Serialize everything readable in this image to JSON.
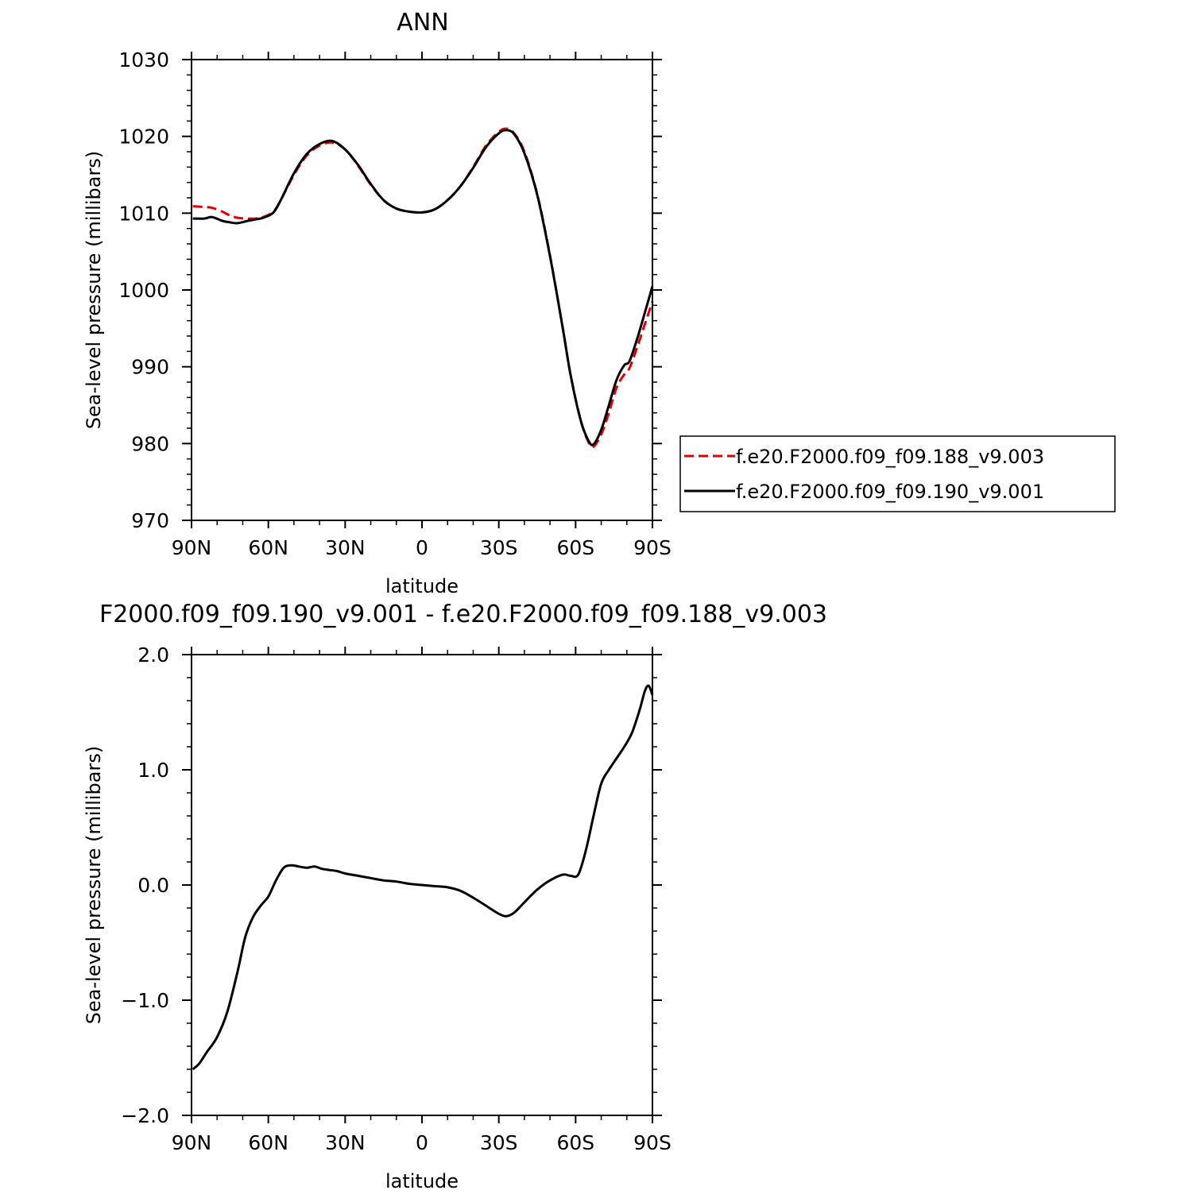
{
  "chart_data": [
    {
      "type": "line",
      "title": "ANN",
      "xlabel": "latitude",
      "ylabel": "Sea-level pressure (millibars)",
      "xlim": [
        90,
        -90
      ],
      "ylim": [
        970,
        1030
      ],
      "x_ticks": [
        {
          "value": 90,
          "label": "90N"
        },
        {
          "value": 60,
          "label": "60N"
        },
        {
          "value": 30,
          "label": "30N"
        },
        {
          "value": 0,
          "label": "0"
        },
        {
          "value": -30,
          "label": "30S"
        },
        {
          "value": -60,
          "label": "60S"
        },
        {
          "value": -90,
          "label": "90S"
        }
      ],
      "y_ticks": [
        {
          "value": 1030,
          "label": "1030"
        },
        {
          "value": 1020,
          "label": "1020"
        },
        {
          "value": 1010,
          "label": "1010"
        },
        {
          "value": 1000,
          "label": "1000"
        },
        {
          "value": 990,
          "label": "990"
        },
        {
          "value": 980,
          "label": "980"
        },
        {
          "value": 970,
          "label": "970"
        }
      ],
      "legend_position": "right",
      "series": [
        {
          "name": "f.e20.F2000.f09_f09.188_v9.003",
          "color": "#e00000",
          "dash": "dashed",
          "x": [
            89.5,
            85,
            82,
            78,
            75,
            72,
            68,
            65,
            62,
            58,
            55,
            50,
            45,
            40,
            35,
            30,
            25,
            20,
            15,
            10,
            5,
            0,
            -5,
            -10,
            -15,
            -20,
            -25,
            -30,
            -33,
            -36,
            -40,
            -45,
            -50,
            -55,
            -58,
            -62,
            -65,
            -67,
            -70,
            -73,
            -76,
            -79,
            -81,
            -84,
            -87,
            -90
          ],
          "y": [
            1010.9,
            1010.8,
            1010.7,
            1010.2,
            1009.7,
            1009.4,
            1009.3,
            1009.3,
            1009.5,
            1010.2,
            1011.8,
            1015,
            1017.5,
            1018.8,
            1019.2,
            1018.3,
            1016.2,
            1013.7,
            1011.7,
            1010.6,
            1010.2,
            1010.1,
            1010.5,
            1011.7,
            1013.5,
            1016.0,
            1018.8,
            1020.6,
            1021.0,
            1020.4,
            1018,
            1012.5,
            1004.5,
            995,
            989,
            983,
            980.2,
            979.6,
            981.2,
            984,
            987.3,
            989,
            989.8,
            992.5,
            995.5,
            998.5
          ]
        },
        {
          "name": "f.e20.F2000.f09_f09.190_v9.001",
          "color": "#000000",
          "dash": "solid",
          "x": [
            89.5,
            85,
            82,
            78,
            75,
            72,
            68,
            65,
            62,
            58,
            55,
            50,
            45,
            40,
            35,
            30,
            25,
            20,
            15,
            10,
            5,
            0,
            -5,
            -10,
            -15,
            -20,
            -25,
            -30,
            -33,
            -36,
            -40,
            -45,
            -50,
            -55,
            -58,
            -62,
            -65,
            -67,
            -70,
            -73,
            -76,
            -79,
            -81,
            -84,
            -87,
            -90
          ],
          "y": [
            1009.3,
            1009.3,
            1009.5,
            1009.0,
            1008.8,
            1008.7,
            1009.0,
            1009.2,
            1009.4,
            1010.1,
            1011.8,
            1015.2,
            1017.7,
            1019.0,
            1019.4,
            1018.3,
            1016.3,
            1013.8,
            1011.7,
            1010.6,
            1010.2,
            1010.1,
            1010.5,
            1011.7,
            1013.5,
            1015.9,
            1018.6,
            1020.4,
            1020.8,
            1020.3,
            1017.8,
            1012.4,
            1004.4,
            995,
            989,
            983,
            980.4,
            979.9,
            981.8,
            985,
            988.3,
            990.2,
            990.7,
            993.6,
            997.0,
            1000.5
          ]
        }
      ]
    },
    {
      "type": "line",
      "title": "F2000.f09_f09.190_v9.001 - f.e20.F2000.f09_f09.188_v9.003",
      "xlabel": "latitude",
      "ylabel": "Sea-level pressure (millibars)",
      "xlim": [
        90,
        -90
      ],
      "ylim": [
        -2.0,
        2.0
      ],
      "x_ticks": [
        {
          "value": 90,
          "label": "90N"
        },
        {
          "value": 60,
          "label": "60N"
        },
        {
          "value": 30,
          "label": "30N"
        },
        {
          "value": 0,
          "label": "0"
        },
        {
          "value": -30,
          "label": "30S"
        },
        {
          "value": -60,
          "label": "60S"
        },
        {
          "value": -90,
          "label": "90S"
        }
      ],
      "y_ticks": [
        {
          "value": 2.0,
          "label": "2.0"
        },
        {
          "value": 1.0,
          "label": "1.0"
        },
        {
          "value": 0.0,
          "label": "0.0"
        },
        {
          "value": -1.0,
          "label": "−1.0"
        },
        {
          "value": -2.0,
          "label": "−2.0"
        }
      ],
      "series": [
        {
          "color": "#000000",
          "dash": "solid",
          "x": [
            89.5,
            87,
            84,
            80,
            76,
            72,
            69,
            66,
            63,
            60,
            57,
            54,
            51,
            48,
            45,
            42,
            39,
            36,
            33,
            30,
            25,
            20,
            15,
            10,
            5,
            0,
            -5,
            -10,
            -15,
            -20,
            -25,
            -30,
            -33,
            -36,
            -40,
            -45,
            -50,
            -55,
            -58,
            -61,
            -64,
            -67,
            -70,
            -73,
            -76,
            -79,
            -82,
            -85,
            -87,
            -88.5,
            -90
          ],
          "y": [
            -1.6,
            -1.55,
            -1.45,
            -1.32,
            -1.1,
            -0.75,
            -0.45,
            -0.28,
            -0.18,
            -0.1,
            0.04,
            0.15,
            0.17,
            0.16,
            0.15,
            0.16,
            0.14,
            0.13,
            0.12,
            0.1,
            0.08,
            0.06,
            0.04,
            0.03,
            0.01,
            0.0,
            -0.01,
            -0.02,
            -0.05,
            -0.11,
            -0.18,
            -0.25,
            -0.27,
            -0.24,
            -0.15,
            -0.04,
            0.04,
            0.09,
            0.08,
            0.09,
            0.3,
            0.6,
            0.88,
            1.0,
            1.1,
            1.2,
            1.32,
            1.52,
            1.68,
            1.73,
            1.65
          ]
        }
      ]
    }
  ]
}
